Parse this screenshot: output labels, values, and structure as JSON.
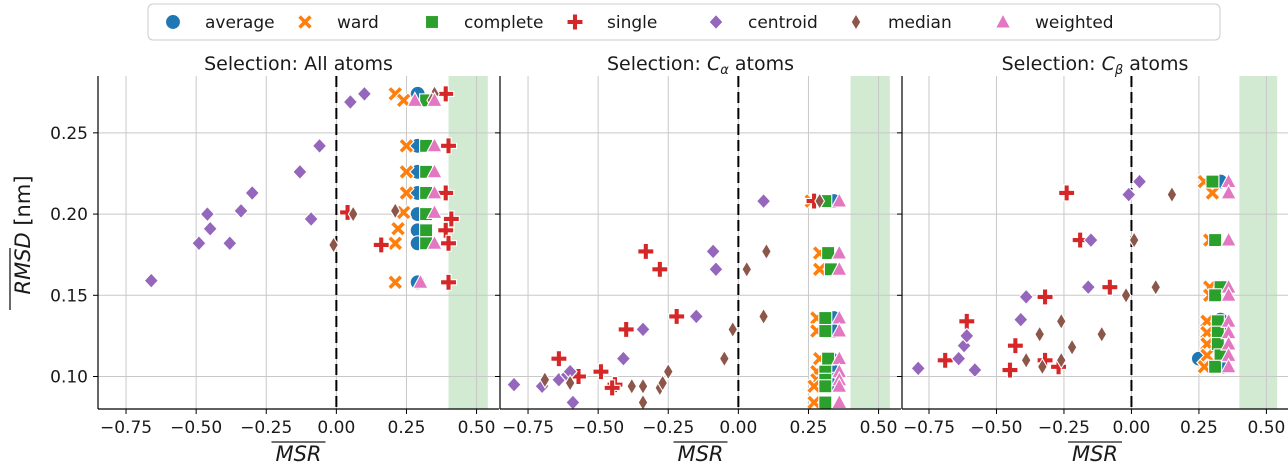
{
  "legend": {
    "placement": "top-center",
    "items": [
      {
        "name": "average",
        "color": "#1f77b4",
        "marker": "circle"
      },
      {
        "name": "ward",
        "color": "#ff7f0e",
        "marker": "x"
      },
      {
        "name": "complete",
        "color": "#2ca02c",
        "marker": "square"
      },
      {
        "name": "single",
        "color": "#d62728",
        "marker": "plus"
      },
      {
        "name": "centroid",
        "color": "#9467bd",
        "marker": "diamond"
      },
      {
        "name": "median",
        "color": "#8c564b",
        "marker": "thin-diamond"
      },
      {
        "name": "weighted",
        "color": "#e377c2",
        "marker": "triangle"
      }
    ]
  },
  "chart_data": [
    {
      "type": "scatter",
      "title": "Selection: All atoms",
      "xlabel": "MSR",
      "ylabel": "RMSD [nm]",
      "xlim": [
        -0.85,
        0.58
      ],
      "ylim": [
        0.08,
        0.285
      ],
      "xticks": [
        "−0.75",
        "−0.50",
        "−0.25",
        "0.00",
        "0.25",
        "0.50"
      ],
      "yticks": [
        "0.10",
        "0.15",
        "0.20",
        "0.25"
      ],
      "grid": true,
      "vline_x": 0.0,
      "shaded_xrange": [
        0.4,
        0.54
      ],
      "series": [
        {
          "name": "average",
          "points": [
            [
              0.29,
              0.274
            ],
            [
              0.29,
              0.242
            ],
            [
              0.29,
              0.226
            ],
            [
              0.29,
              0.213
            ],
            [
              0.29,
              0.2
            ],
            [
              0.29,
              0.19
            ],
            [
              0.29,
              0.182
            ],
            [
              0.29,
              0.158
            ]
          ]
        },
        {
          "name": "ward",
          "points": [
            [
              0.21,
              0.274
            ],
            [
              0.24,
              0.27
            ],
            [
              0.25,
              0.242
            ],
            [
              0.25,
              0.226
            ],
            [
              0.25,
              0.213
            ],
            [
              0.24,
              0.201
            ],
            [
              0.22,
              0.191
            ],
            [
              0.21,
              0.182
            ],
            [
              0.21,
              0.158
            ]
          ]
        },
        {
          "name": "complete",
          "points": [
            [
              0.32,
              0.27
            ],
            [
              0.32,
              0.242
            ],
            [
              0.32,
              0.226
            ],
            [
              0.32,
              0.213
            ],
            [
              0.32,
              0.2
            ],
            [
              0.32,
              0.19
            ],
            [
              0.32,
              0.182
            ]
          ]
        },
        {
          "name": "single",
          "points": [
            [
              0.39,
              0.274
            ],
            [
              0.4,
              0.242
            ],
            [
              0.39,
              0.213
            ],
            [
              0.41,
              0.197
            ],
            [
              0.39,
              0.19
            ],
            [
              0.4,
              0.182
            ],
            [
              0.4,
              0.158
            ],
            [
              0.16,
              0.181
            ],
            [
              0.04,
              0.201
            ]
          ]
        },
        {
          "name": "centroid",
          "points": [
            [
              -0.66,
              0.159
            ],
            [
              -0.49,
              0.182
            ],
            [
              -0.45,
              0.191
            ],
            [
              -0.46,
              0.2
            ],
            [
              -0.38,
              0.182
            ],
            [
              -0.3,
              0.213
            ],
            [
              -0.34,
              0.202
            ],
            [
              -0.13,
              0.226
            ],
            [
              -0.09,
              0.197
            ],
            [
              -0.06,
              0.242
            ],
            [
              0.05,
              0.269
            ],
            [
              0.1,
              0.274
            ]
          ]
        },
        {
          "name": "median",
          "points": [
            [
              -0.01,
              0.181
            ],
            [
              0.06,
              0.2
            ],
            [
              0.21,
              0.202
            ],
            [
              0.35,
              0.274
            ],
            [
              0.34,
              0.27
            ]
          ]
        },
        {
          "name": "weighted",
          "points": [
            [
              0.35,
              0.27
            ],
            [
              0.35,
              0.242
            ],
            [
              0.35,
              0.226
            ],
            [
              0.35,
              0.213
            ],
            [
              0.35,
              0.201
            ],
            [
              0.35,
              0.182
            ],
            [
              0.3,
              0.158
            ],
            [
              0.28,
              0.27
            ]
          ]
        }
      ]
    },
    {
      "type": "scatter",
      "title": "Selection: C_α atoms",
      "title_prefix": "Selection: ",
      "title_symbol": "C",
      "title_subscript": "α",
      "title_suffix": " atoms",
      "xlabel": "MSR",
      "ylabel": "RMSD [nm]",
      "xlim": [
        -0.85,
        0.58
      ],
      "ylim": [
        0.08,
        0.285
      ],
      "xticks": [
        "−0.75",
        "−0.50",
        "−0.25",
        "0.00",
        "0.25",
        "0.50"
      ],
      "yticks": [
        "0.10",
        "0.15",
        "0.20",
        "0.25"
      ],
      "grid": true,
      "vline_x": 0.0,
      "shaded_xrange": [
        0.4,
        0.54
      ],
      "series": [
        {
          "name": "average",
          "points": [
            [
              0.34,
              0.208
            ],
            [
              0.32,
              0.176
            ],
            [
              0.33,
              0.166
            ],
            [
              0.34,
              0.136
            ],
            [
              0.34,
              0.128
            ],
            [
              0.33,
              0.111
            ],
            [
              0.34,
              0.103
            ],
            [
              0.34,
              0.098
            ],
            [
              0.33,
              0.095
            ]
          ]
        },
        {
          "name": "ward",
          "points": [
            [
              0.26,
              0.208
            ],
            [
              0.29,
              0.176
            ],
            [
              0.29,
              0.166
            ],
            [
              0.28,
              0.136
            ],
            [
              0.28,
              0.128
            ],
            [
              0.29,
              0.111
            ],
            [
              0.28,
              0.103
            ],
            [
              0.28,
              0.098
            ],
            [
              0.27,
              0.094
            ],
            [
              0.27,
              0.084
            ]
          ]
        },
        {
          "name": "complete",
          "points": [
            [
              0.31,
              0.208
            ],
            [
              0.32,
              0.176
            ],
            [
              0.33,
              0.166
            ],
            [
              0.31,
              0.136
            ],
            [
              0.31,
              0.128
            ],
            [
              0.32,
              0.111
            ],
            [
              0.31,
              0.103
            ],
            [
              0.31,
              0.098
            ],
            [
              0.31,
              0.094
            ],
            [
              0.31,
              0.084
            ]
          ]
        },
        {
          "name": "single",
          "points": [
            [
              -0.64,
              0.111
            ],
            [
              -0.57,
              0.1
            ],
            [
              -0.49,
              0.103
            ],
            [
              -0.44,
              0.095
            ],
            [
              -0.45,
              0.093
            ],
            [
              -0.4,
              0.129
            ],
            [
              -0.33,
              0.177
            ],
            [
              -0.28,
              0.166
            ],
            [
              -0.22,
              0.137
            ],
            [
              0.27,
              0.208
            ]
          ]
        },
        {
          "name": "centroid",
          "points": [
            [
              -0.8,
              0.095
            ],
            [
              -0.7,
              0.094
            ],
            [
              -0.64,
              0.098
            ],
            [
              -0.61,
              0.101
            ],
            [
              -0.59,
              0.084
            ],
            [
              -0.6,
              0.103
            ],
            [
              -0.41,
              0.111
            ],
            [
              -0.34,
              0.129
            ],
            [
              -0.15,
              0.137
            ],
            [
              -0.09,
              0.177
            ],
            [
              -0.08,
              0.166
            ],
            [
              0.09,
              0.208
            ]
          ]
        },
        {
          "name": "median",
          "points": [
            [
              -0.69,
              0.098
            ],
            [
              -0.6,
              0.096
            ],
            [
              -0.38,
              0.094
            ],
            [
              -0.34,
              0.094
            ],
            [
              -0.34,
              0.084
            ],
            [
              -0.28,
              0.093
            ],
            [
              -0.27,
              0.096
            ],
            [
              -0.25,
              0.103
            ],
            [
              -0.05,
              0.111
            ],
            [
              -0.02,
              0.129
            ],
            [
              0.03,
              0.166
            ],
            [
              0.09,
              0.137
            ],
            [
              0.1,
              0.177
            ],
            [
              0.29,
              0.208
            ]
          ]
        },
        {
          "name": "weighted",
          "points": [
            [
              0.36,
              0.208
            ],
            [
              0.36,
              0.176
            ],
            [
              0.36,
              0.166
            ],
            [
              0.36,
              0.136
            ],
            [
              0.36,
              0.128
            ],
            [
              0.36,
              0.111
            ],
            [
              0.36,
              0.103
            ],
            [
              0.36,
              0.098
            ],
            [
              0.36,
              0.094
            ],
            [
              0.36,
              0.084
            ]
          ]
        }
      ]
    },
    {
      "type": "scatter",
      "title": "Selection: C_β atoms",
      "title_prefix": "Selection: ",
      "title_symbol": "C",
      "title_subscript": "β",
      "title_suffix": " atoms",
      "xlabel": "MSR",
      "ylabel": "RMSD [nm]",
      "xlim": [
        -0.85,
        0.58
      ],
      "ylim": [
        0.08,
        0.285
      ],
      "xticks": [
        "−0.75",
        "−0.50",
        "−0.25",
        "0.00",
        "0.25",
        "0.50"
      ],
      "yticks": [
        "0.10",
        "0.15",
        "0.20",
        "0.25"
      ],
      "grid": true,
      "vline_x": 0.0,
      "shaded_xrange": [
        0.4,
        0.54
      ],
      "series": [
        {
          "name": "average",
          "points": [
            [
              0.33,
              0.22
            ],
            [
              0.34,
              0.155
            ],
            [
              0.33,
              0.135
            ],
            [
              0.33,
              0.128
            ],
            [
              0.33,
              0.118
            ],
            [
              0.25,
              0.111
            ],
            [
              0.33,
              0.111
            ],
            [
              0.34,
              0.106
            ]
          ]
        },
        {
          "name": "ward",
          "points": [
            [
              0.27,
              0.22
            ],
            [
              0.3,
              0.213
            ],
            [
              0.29,
              0.184
            ],
            [
              0.29,
              0.155
            ],
            [
              0.29,
              0.15
            ],
            [
              0.28,
              0.134
            ],
            [
              0.28,
              0.127
            ],
            [
              0.28,
              0.12
            ],
            [
              0.28,
              0.113
            ],
            [
              0.27,
              0.106
            ]
          ]
        },
        {
          "name": "complete",
          "points": [
            [
              0.3,
              0.22
            ],
            [
              0.31,
              0.184
            ],
            [
              0.33,
              0.155
            ],
            [
              0.31,
              0.15
            ],
            [
              0.32,
              0.134
            ],
            [
              0.32,
              0.127
            ],
            [
              0.32,
              0.12
            ],
            [
              0.33,
              0.113
            ],
            [
              0.31,
              0.106
            ]
          ]
        },
        {
          "name": "single",
          "points": [
            [
              -0.61,
              0.134
            ],
            [
              -0.69,
              0.11
            ],
            [
              -0.45,
              0.104
            ],
            [
              -0.43,
              0.119
            ],
            [
              -0.32,
              0.149
            ],
            [
              -0.32,
              0.11
            ],
            [
              -0.27,
              0.106
            ],
            [
              -0.24,
              0.213
            ],
            [
              -0.19,
              0.184
            ],
            [
              -0.08,
              0.155
            ]
          ]
        },
        {
          "name": "centroid",
          "points": [
            [
              -0.79,
              0.105
            ],
            [
              -0.64,
              0.111
            ],
            [
              -0.62,
              0.119
            ],
            [
              -0.61,
              0.125
            ],
            [
              -0.58,
              0.104
            ],
            [
              -0.41,
              0.135
            ],
            [
              -0.39,
              0.149
            ],
            [
              -0.16,
              0.155
            ],
            [
              -0.15,
              0.184
            ],
            [
              -0.01,
              0.212
            ],
            [
              0.03,
              0.22
            ]
          ]
        },
        {
          "name": "median",
          "points": [
            [
              -0.39,
              0.11
            ],
            [
              -0.34,
              0.126
            ],
            [
              -0.33,
              0.106
            ],
            [
              -0.26,
              0.134
            ],
            [
              -0.26,
              0.11
            ],
            [
              -0.22,
              0.118
            ],
            [
              -0.11,
              0.126
            ],
            [
              -0.02,
              0.15
            ],
            [
              0.01,
              0.184
            ],
            [
              0.09,
              0.155
            ],
            [
              0.15,
              0.212
            ]
          ]
        },
        {
          "name": "weighted",
          "points": [
            [
              0.36,
              0.22
            ],
            [
              0.36,
              0.213
            ],
            [
              0.36,
              0.184
            ],
            [
              0.36,
              0.155
            ],
            [
              0.36,
              0.15
            ],
            [
              0.36,
              0.134
            ],
            [
              0.36,
              0.127
            ],
            [
              0.36,
              0.12
            ],
            [
              0.36,
              0.113
            ],
            [
              0.36,
              0.106
            ]
          ]
        }
      ]
    }
  ]
}
